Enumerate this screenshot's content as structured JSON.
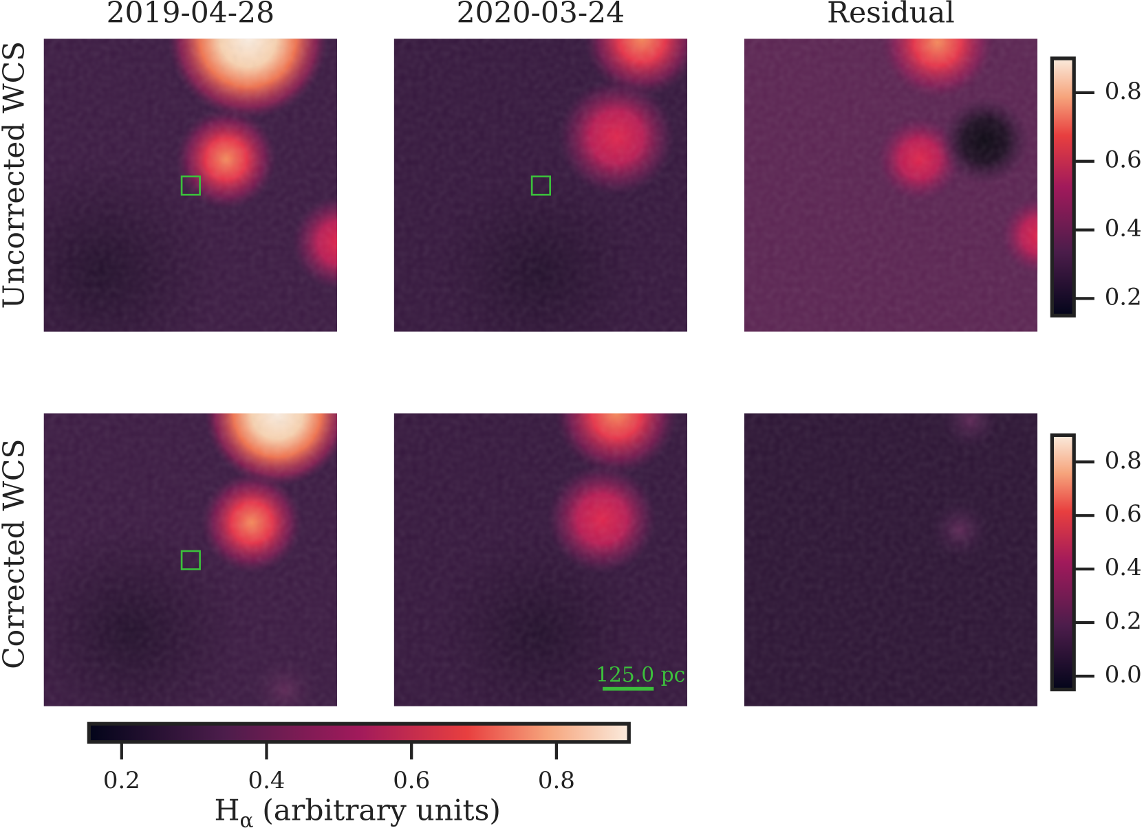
{
  "column_titles": [
    "2019-04-28",
    "2020-03-24",
    "Residual"
  ],
  "row_labels": [
    "Uncorrected WCS",
    "Corrected WCS"
  ],
  "colorbars": [
    {
      "ylim": [
        0.15,
        0.9
      ],
      "yticks": [
        0.2,
        0.4,
        0.6,
        0.8
      ]
    },
    {
      "ylim": [
        -0.05,
        0.9
      ],
      "yticks": [
        {
          "value": 0,
          "label": "0.0"
        },
        0.2,
        0.4,
        0.6,
        0.8
      ]
    }
  ],
  "shared_colorbar": {
    "label_symbol": "H",
    "label_subscript": "α",
    "label_text": "(arbitrary units)",
    "xlim": [
      0.155,
      0.9
    ],
    "xticks": [
      0.2,
      0.4,
      0.6,
      0.8
    ]
  },
  "scale_bar": {
    "label": "125.0 pc"
  }
}
